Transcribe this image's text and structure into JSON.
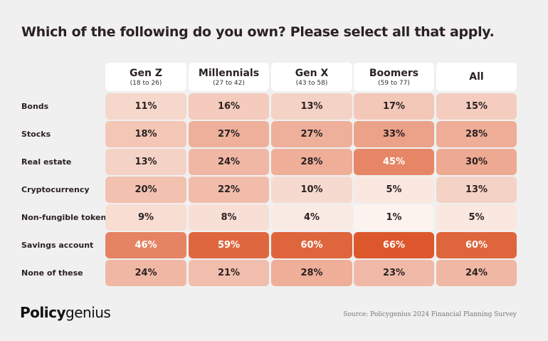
{
  "chart_data": {
    "type": "heatmap",
    "title": "Which of the following do you own? Please select all that apply.",
    "columns": [
      {
        "name": "Gen Z",
        "sub": "(18 to 26)"
      },
      {
        "name": "Millennials",
        "sub": "(27 to 42)"
      },
      {
        "name": "Gen X",
        "sub": "(43 to 58)"
      },
      {
        "name": "Boomers",
        "sub": "(59 to 77)"
      },
      {
        "name": "All",
        "sub": ""
      }
    ],
    "rows": [
      "Bonds",
      "Stocks",
      "Real estate",
      "Cryptocurrency",
      "Non-fungible tokens",
      "Savings account",
      "None of these"
    ],
    "values": [
      [
        11,
        16,
        13,
        17,
        15
      ],
      [
        18,
        27,
        27,
        33,
        28
      ],
      [
        13,
        24,
        28,
        45,
        30
      ],
      [
        20,
        22,
        10,
        5,
        13
      ],
      [
        9,
        8,
        4,
        1,
        5
      ],
      [
        46,
        59,
        60,
        66,
        60
      ],
      [
        24,
        21,
        28,
        23,
        24
      ]
    ],
    "unit": "%",
    "color_scale": {
      "low": "#fdf7f4",
      "high": "#dc582c"
    }
  },
  "brand": {
    "bold": "Policy",
    "regular": "genius"
  },
  "source": "Source: Policygenius 2024 Financial Planning Survey"
}
